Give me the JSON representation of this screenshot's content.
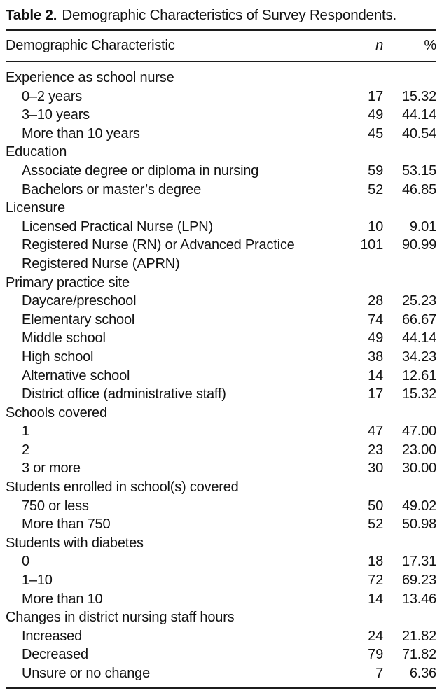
{
  "title": {
    "prefix": "Table 2.",
    "caption": "Demographic Characteristics of Survey Respondents."
  },
  "table": {
    "columns": {
      "characteristic": "Demographic Characteristic",
      "n": "n",
      "percent": "%"
    },
    "sections": [
      {
        "header": "Experience as school nurse",
        "rows": [
          {
            "label": "0–2 years",
            "n": "17",
            "pct": "15.32"
          },
          {
            "label": "3–10 years",
            "n": "49",
            "pct": "44.14"
          },
          {
            "label": "More than 10 years",
            "n": "45",
            "pct": "40.54"
          }
        ]
      },
      {
        "header": "Education",
        "rows": [
          {
            "label": "Associate degree or diploma in nursing",
            "n": "59",
            "pct": "53.15"
          },
          {
            "label": "Bachelors or master’s degree",
            "n": "52",
            "pct": "46.85"
          }
        ]
      },
      {
        "header": "Licensure",
        "rows": [
          {
            "label": "Licensed Practical Nurse (LPN)",
            "n": "10",
            "pct": "9.01"
          },
          {
            "label": "Registered Nurse (RN) or Advanced Practice",
            "label_line2": "Registered Nurse (APRN)",
            "n": "101",
            "pct": "90.99"
          }
        ]
      },
      {
        "header": "Primary practice site",
        "rows": [
          {
            "label": "Daycare/preschool",
            "n": "28",
            "pct": "25.23"
          },
          {
            "label": "Elementary school",
            "n": "74",
            "pct": "66.67"
          },
          {
            "label": "Middle school",
            "n": "49",
            "pct": "44.14"
          },
          {
            "label": "High school",
            "n": "38",
            "pct": "34.23"
          },
          {
            "label": "Alternative school",
            "n": "14",
            "pct": "12.61"
          },
          {
            "label": "District office (administrative staff)",
            "n": "17",
            "pct": "15.32"
          }
        ]
      },
      {
        "header": "Schools covered",
        "rows": [
          {
            "label": "1",
            "n": "47",
            "pct": "47.00"
          },
          {
            "label": "2",
            "n": "23",
            "pct": "23.00"
          },
          {
            "label": "3 or more",
            "n": "30",
            "pct": "30.00"
          }
        ]
      },
      {
        "header": "Students enrolled in school(s) covered",
        "rows": [
          {
            "label": "750 or less",
            "n": "50",
            "pct": "49.02"
          },
          {
            "label": "More than 750",
            "n": "52",
            "pct": "50.98"
          }
        ]
      },
      {
        "header": "Students with diabetes",
        "rows": [
          {
            "label": "0",
            "n": "18",
            "pct": "17.31"
          },
          {
            "label": "1–10",
            "n": "72",
            "pct": "69.23"
          },
          {
            "label": "More than 10",
            "n": "14",
            "pct": "13.46"
          }
        ]
      },
      {
        "header": "Changes in district nursing staff hours",
        "rows": [
          {
            "label": "Increased",
            "n": "24",
            "pct": "21.82"
          },
          {
            "label": "Decreased",
            "n": "79",
            "pct": "71.82"
          },
          {
            "label": "Unsure or no change",
            "n": "7",
            "pct": "6.36"
          }
        ]
      }
    ]
  },
  "colors": {
    "background": "#ffffff",
    "text": "#111111",
    "rule": "#1c1c1c"
  }
}
